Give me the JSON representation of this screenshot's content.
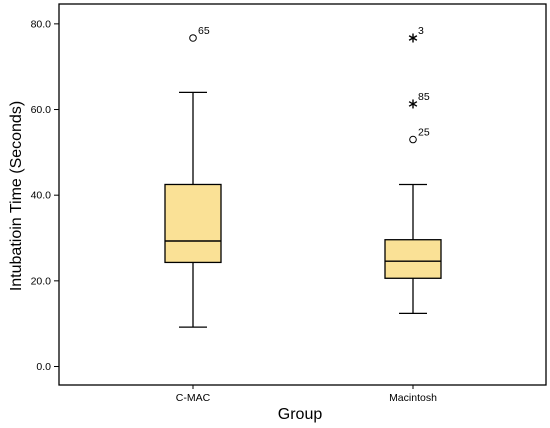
{
  "chart_data": {
    "type": "boxplot",
    "title": "",
    "xlabel": "Group",
    "ylabel": "Intubatioin Time (Seconds)",
    "ylim": [
      -4,
      85
    ],
    "y_ticks": [
      "0.0",
      "20.0",
      "40.0",
      "60.0",
      "80.0"
    ],
    "y_tick_values": [
      0,
      20,
      40,
      60,
      80
    ],
    "grid": false,
    "box_color": "#fae196",
    "line_color": "#000000",
    "categories": [
      "C-MAC",
      "Macintosh"
    ],
    "boxes": [
      {
        "category": "C-MAC",
        "whisker_low": 9.2,
        "q1": 24.3,
        "median": 29.3,
        "q3": 42.5,
        "whisker_high": 64.0,
        "outliers": [
          {
            "value": 76.7,
            "label": "65",
            "marker": "o"
          }
        ]
      },
      {
        "category": "Macintosh",
        "whisker_low": 12.4,
        "q1": 20.6,
        "median": 24.6,
        "q3": 29.6,
        "whisker_high": 42.5,
        "outliers": [
          {
            "value": 76.7,
            "label": "3",
            "marker": "*"
          },
          {
            "value": 61.3,
            "label": "85",
            "marker": "*"
          },
          {
            "value": 53.0,
            "label": "25",
            "marker": "o"
          }
        ]
      }
    ]
  }
}
